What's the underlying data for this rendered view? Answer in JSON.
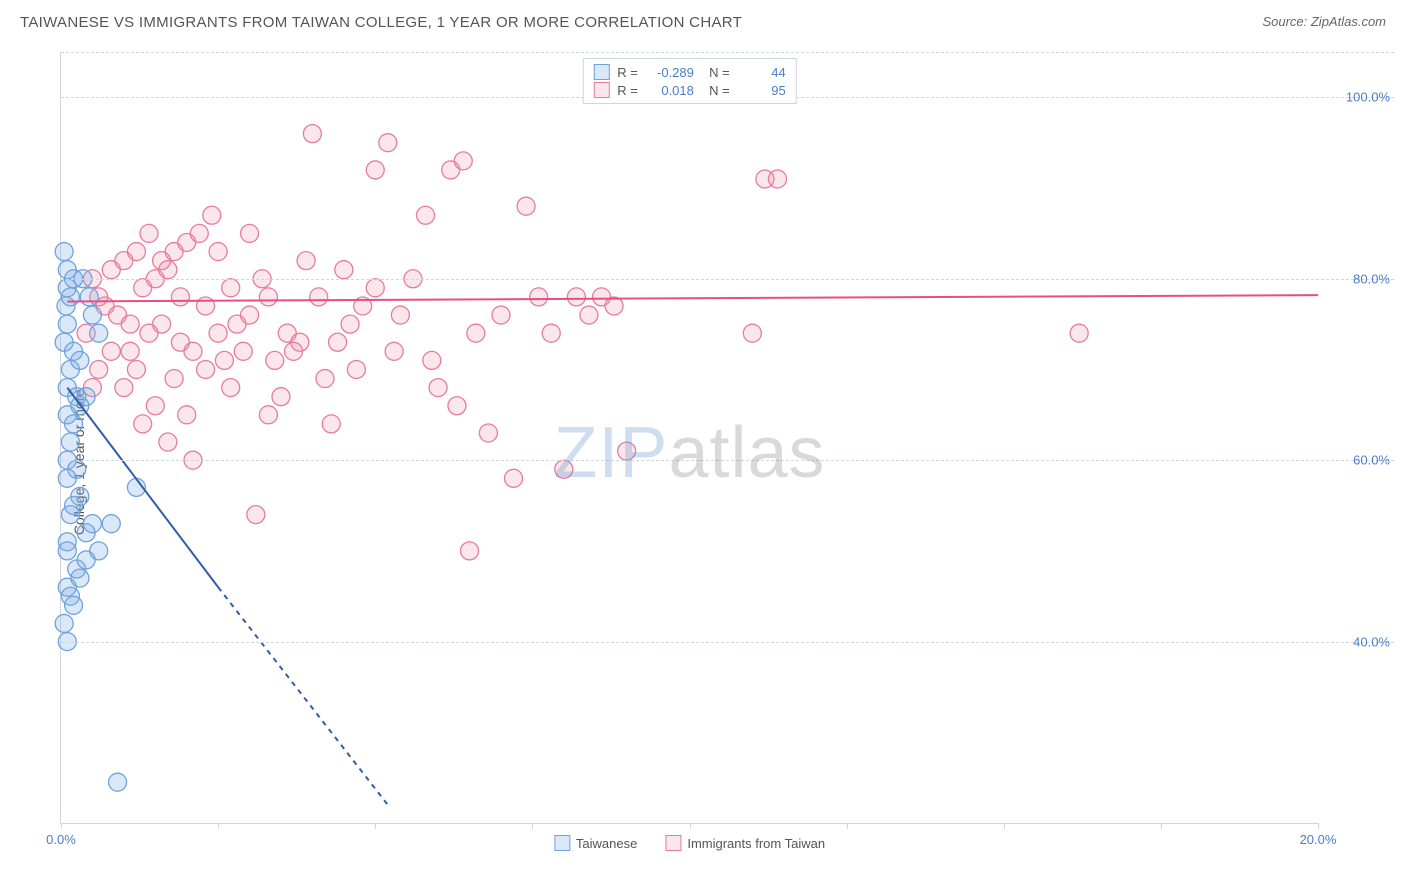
{
  "header": {
    "title": "TAIWANESE VS IMMIGRANTS FROM TAIWAN COLLEGE, 1 YEAR OR MORE CORRELATION CHART",
    "source": "Source: ZipAtlas.com"
  },
  "watermark": {
    "part1": "ZIP",
    "part2": "atlas"
  },
  "chart": {
    "type": "scatter",
    "ylabel": "College, 1 year or more",
    "xlim": [
      0,
      20
    ],
    "ylim": [
      20,
      105
    ],
    "xtick_positions": [
      0,
      2.5,
      5,
      7.5,
      10,
      12.5,
      15,
      17.5,
      20
    ],
    "xtick_labels_show": {
      "0": "0.0%",
      "20": "20.0%"
    },
    "ytick_positions": [
      40,
      60,
      80,
      100
    ],
    "ytick_labels": {
      "40": "40.0%",
      "60": "60.0%",
      "80": "80.0%",
      "100": "100.0%"
    },
    "grid_positions_y": [
      40,
      60,
      80,
      100,
      105
    ],
    "background_color": "#ffffff",
    "grid_color": "#d0d6de",
    "axis_label_color": "#555555",
    "tick_label_color": "#4a7ec9",
    "marker_radius": 9,
    "marker_stroke_width": 1.3,
    "line_width": 2,
    "series": {
      "taiwanese": {
        "label": "Taiwanese",
        "fill": "rgba(125,172,230,0.28)",
        "stroke": "#6fa3de",
        "line_color": "#2e5fa8",
        "r_value": "-0.289",
        "n_value": "44",
        "trend": {
          "x1": 0.1,
          "y1": 68,
          "x2_solid": 2.5,
          "y2_solid": 46,
          "x2_dash": 5.2,
          "y2_dash": 22
        },
        "points": [
          [
            0.05,
            83
          ],
          [
            0.1,
            81
          ],
          [
            0.1,
            79
          ],
          [
            0.08,
            77
          ],
          [
            0.15,
            78
          ],
          [
            0.2,
            80
          ],
          [
            0.1,
            75
          ],
          [
            0.05,
            73
          ],
          [
            0.2,
            72
          ],
          [
            0.15,
            70
          ],
          [
            0.1,
            68
          ],
          [
            0.25,
            67
          ],
          [
            0.3,
            66
          ],
          [
            0.1,
            65
          ],
          [
            0.2,
            64
          ],
          [
            0.15,
            62
          ],
          [
            0.1,
            60
          ],
          [
            0.25,
            59
          ],
          [
            0.1,
            58
          ],
          [
            0.3,
            56
          ],
          [
            0.2,
            55
          ],
          [
            0.15,
            54
          ],
          [
            0.4,
            52
          ],
          [
            0.1,
            51
          ],
          [
            0.5,
            53
          ],
          [
            0.1,
            50
          ],
          [
            0.25,
            48
          ],
          [
            0.3,
            47
          ],
          [
            0.1,
            46
          ],
          [
            1.2,
            57
          ],
          [
            0.6,
            50
          ],
          [
            0.4,
            49
          ],
          [
            0.8,
            53
          ],
          [
            0.15,
            45
          ],
          [
            0.2,
            44
          ],
          [
            0.05,
            42
          ],
          [
            0.1,
            40
          ],
          [
            0.9,
            24.5
          ],
          [
            0.4,
            67
          ],
          [
            0.3,
            71
          ],
          [
            0.5,
            76
          ],
          [
            0.45,
            78
          ],
          [
            0.6,
            74
          ],
          [
            0.35,
            80
          ]
        ]
      },
      "immigrants": {
        "label": "Immigrants from Taiwan",
        "fill": "rgba(238,140,166,0.22)",
        "stroke": "#e77c9d",
        "line_color": "#e94d82",
        "r_value": "0.018",
        "n_value": "95",
        "trend": {
          "x1": 0.1,
          "y1": 77.5,
          "x2": 20,
          "y2": 78.2
        },
        "points": [
          [
            0.5,
            80
          ],
          [
            0.6,
            78
          ],
          [
            0.8,
            81
          ],
          [
            1.0,
            82
          ],
          [
            1.2,
            83
          ],
          [
            0.7,
            77
          ],
          [
            0.9,
            76
          ],
          [
            1.1,
            75
          ],
          [
            1.3,
            79
          ],
          [
            1.5,
            80
          ],
          [
            1.4,
            74
          ],
          [
            1.6,
            82
          ],
          [
            1.8,
            83
          ],
          [
            2.0,
            84
          ],
          [
            1.7,
            81
          ],
          [
            2.2,
            85
          ],
          [
            2.1,
            72
          ],
          [
            2.4,
            87
          ],
          [
            1.9,
            73
          ],
          [
            2.3,
            70
          ],
          [
            2.6,
            71
          ],
          [
            2.8,
            75
          ],
          [
            3.0,
            76
          ],
          [
            3.2,
            80
          ],
          [
            2.5,
            83
          ],
          [
            2.7,
            68
          ],
          [
            3.1,
            54
          ],
          [
            3.4,
            71
          ],
          [
            3.6,
            74
          ],
          [
            3.8,
            73
          ],
          [
            3.3,
            78
          ],
          [
            3.5,
            67
          ],
          [
            3.0,
            85
          ],
          [
            4.0,
            96
          ],
          [
            3.7,
            72
          ],
          [
            4.2,
            69
          ],
          [
            4.4,
            73
          ],
          [
            4.6,
            75
          ],
          [
            4.8,
            77
          ],
          [
            5.0,
            92
          ],
          [
            5.2,
            95
          ],
          [
            5.4,
            76
          ],
          [
            5.0,
            79
          ],
          [
            4.5,
            81
          ],
          [
            4.3,
            64
          ],
          [
            5.6,
            80
          ],
          [
            5.8,
            87
          ],
          [
            6.0,
            68
          ],
          [
            6.2,
            92
          ],
          [
            6.4,
            93
          ],
          [
            6.6,
            74
          ],
          [
            6.8,
            63
          ],
          [
            6.5,
            50
          ],
          [
            7.0,
            76
          ],
          [
            7.2,
            58
          ],
          [
            7.4,
            88
          ],
          [
            7.6,
            78
          ],
          [
            7.8,
            74
          ],
          [
            8.0,
            59
          ],
          [
            8.2,
            78
          ],
          [
            8.4,
            76
          ],
          [
            8.6,
            78
          ],
          [
            8.8,
            77
          ],
          [
            1.0,
            68
          ],
          [
            1.2,
            70
          ],
          [
            1.5,
            66
          ],
          [
            1.8,
            69
          ],
          [
            2.0,
            65
          ],
          [
            0.8,
            72
          ],
          [
            0.6,
            70
          ],
          [
            0.4,
            74
          ],
          [
            0.5,
            68
          ],
          [
            1.1,
            72
          ],
          [
            1.3,
            64
          ],
          [
            1.6,
            75
          ],
          [
            1.9,
            78
          ],
          [
            2.3,
            77
          ],
          [
            2.5,
            74
          ],
          [
            2.7,
            79
          ],
          [
            1.4,
            85
          ],
          [
            11.0,
            74
          ],
          [
            11.2,
            91
          ],
          [
            11.4,
            91
          ],
          [
            16.2,
            74
          ],
          [
            9.0,
            61
          ],
          [
            3.9,
            82
          ],
          [
            4.1,
            78
          ],
          [
            4.7,
            70
          ],
          [
            5.3,
            72
          ],
          [
            5.9,
            71
          ],
          [
            6.3,
            66
          ],
          [
            2.9,
            72
          ],
          [
            3.3,
            65
          ],
          [
            1.7,
            62
          ],
          [
            2.1,
            60
          ]
        ]
      }
    }
  }
}
